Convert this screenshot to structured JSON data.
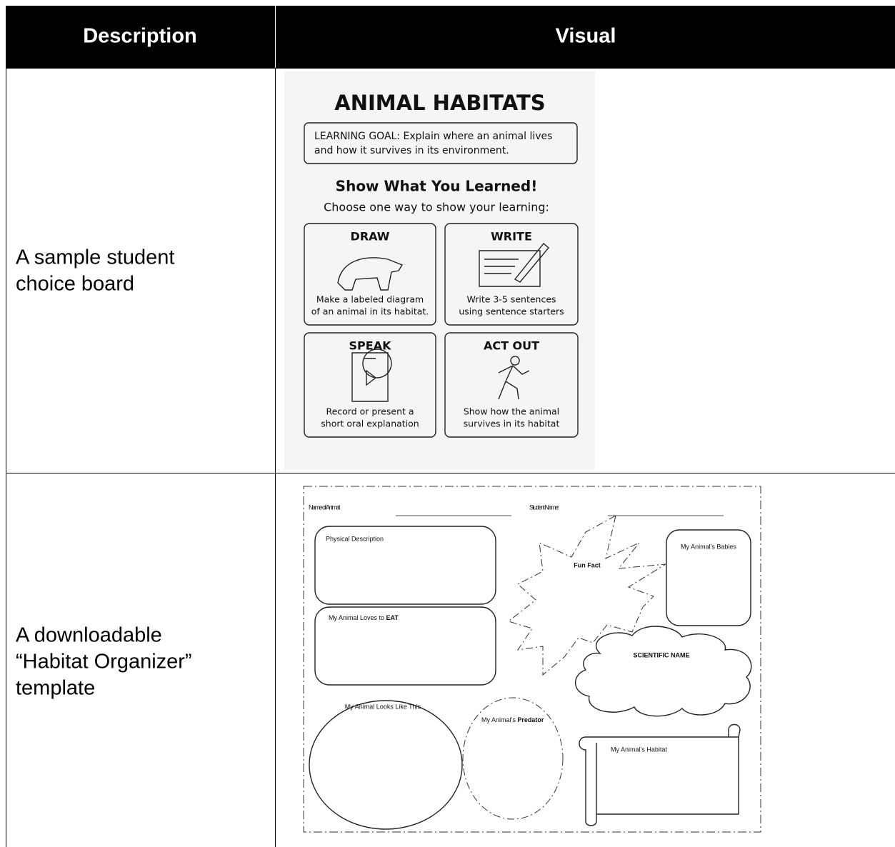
{
  "table": {
    "headers": [
      "Description",
      "Visual"
    ],
    "rows": [
      {
        "description": [
          "A sample student",
          "choice board"
        ]
      },
      {
        "description": [
          "A downloadable",
          "“Habitat Organizer”",
          "template"
        ]
      }
    ]
  },
  "choice_board": {
    "title": "ANIMAL HABITATS",
    "goal": [
      "LEARNING GOAL: Explain where an animal lives",
      "and how it survives in its environment."
    ],
    "heading": "Show What You Learned!",
    "prompt": "Choose one way to show your learning:",
    "options": [
      {
        "title": "DRAW",
        "text": [
          "Make a labeled diagram",
          "of an animal in its habitat."
        ]
      },
      {
        "title": "WRITE",
        "text": [
          "Write 3-5 sentences",
          "using sentence starters"
        ]
      },
      {
        "title": "SPEAK",
        "text": [
          "Record or present a",
          "short oral explanation"
        ]
      },
      {
        "title": "ACT OUT",
        "text": [
          "Show how the animal",
          "survives in its habitat"
        ]
      }
    ]
  },
  "organizer": {
    "animal_name": "Name of Animal:",
    "student_name": "Student Name:",
    "physical": "Physical Description",
    "eat": [
      "My Animal Loves to ",
      "EAT"
    ],
    "fun_fact": "Fun Fact",
    "babies": "My Animal’s Babies",
    "scientific": "SCIENTIFIC NAME",
    "looks": "My Animal Looks Like This",
    "predator": [
      "My Animal’s ",
      "Predator"
    ],
    "habitat": "My Animal’s Habitat"
  }
}
